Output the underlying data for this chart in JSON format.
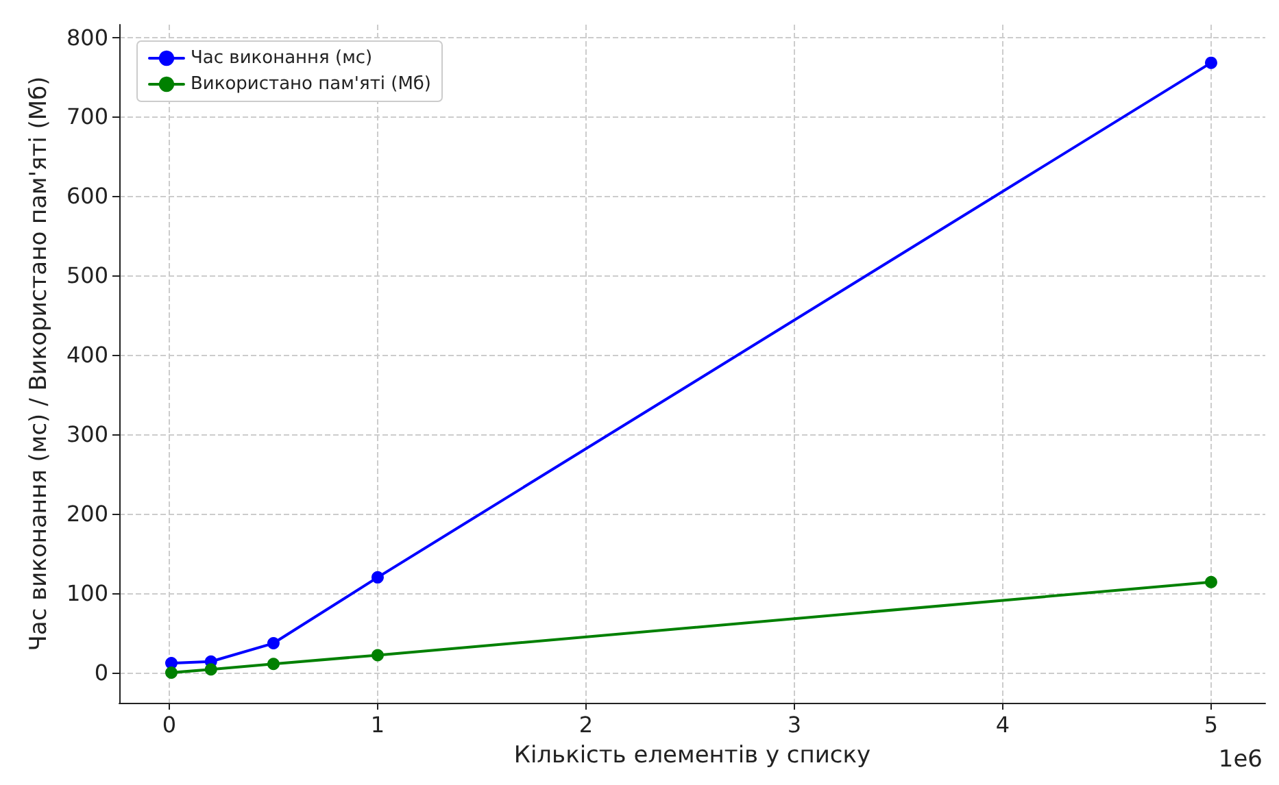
{
  "chart_data": {
    "type": "line",
    "xlabel": "Кількість елементів у списку",
    "ylabel": "Час виконання (мс) / Використано пам'яті (Мб)",
    "x": [
      0.01,
      0.2,
      0.5,
      1,
      5
    ],
    "series": [
      {
        "name": "Час виконання (мс)",
        "color": "#0000ff",
        "values": [
          12,
          14,
          37,
          120,
          768
        ]
      },
      {
        "name": "Використано пам'яті (Мб)",
        "color": "#008000",
        "values": [
          0,
          4,
          11,
          22,
          114
        ]
      }
    ],
    "xlim": [
      -0.24,
      5.26
    ],
    "xticks": [
      0,
      1,
      2,
      3,
      4,
      5
    ],
    "ylim": [
      -38,
      816
    ],
    "yticks": [
      0,
      100,
      200,
      300,
      400,
      500,
      600,
      700,
      800
    ],
    "annotations": [
      "1e6"
    ],
    "grid": true,
    "legend": "top left",
    "marker": "circle",
    "line_style": "solid"
  }
}
